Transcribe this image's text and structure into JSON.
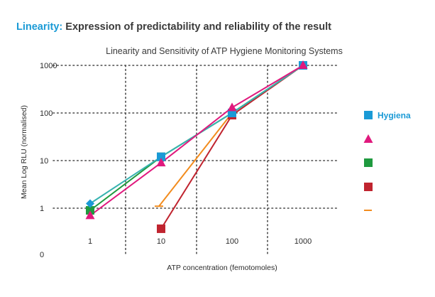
{
  "heading": {
    "highlight": "Linearity:",
    "text": "Expression of predictability and reliability of the result"
  },
  "colors": {
    "blue": "#1a9ad6",
    "magenta": "#e0197d",
    "green": "#1f9a3f",
    "orange": "#f28c1e",
    "red": "#c0242f",
    "teal": "#37b3b0"
  },
  "chart_data": {
    "type": "line",
    "title": "Linearity and Sensitivity of ATP Hygiene Monitoring Systems",
    "xlabel": "ATP concentration (femotomoles)",
    "ylabel": "Mean Log RLU (normalised)",
    "x_scale": "log",
    "y_scale": "log",
    "x_ticks": [
      "1",
      "10",
      "100",
      "1000"
    ],
    "y_ticks": [
      "0",
      "1",
      "10",
      "100",
      "1000"
    ],
    "grid": "dotted",
    "legend_position": "right",
    "series": [
      {
        "name": "Hygiena",
        "color": "#1a9ad6",
        "marker": "square",
        "line_color": "#37b3b0",
        "x": [
          1,
          10,
          100,
          1000
        ],
        "y": [
          1.25,
          12,
          100,
          1000
        ]
      },
      {
        "name": "",
        "color": "#e0197d",
        "marker": "triangle",
        "x": [
          1,
          10,
          100,
          1000
        ],
        "y": [
          0.7,
          9,
          130,
          1000
        ]
      },
      {
        "name": "",
        "color": "#1f9a3f",
        "marker": "square",
        "x": [
          1,
          10,
          100,
          1000
        ],
        "y": [
          0.9,
          12,
          100,
          1000
        ]
      },
      {
        "name": "",
        "color": "#c0242f",
        "marker": "square",
        "x": [
          10,
          100,
          1000
        ],
        "y": [
          0.37,
          90,
          1000
        ]
      },
      {
        "name": "",
        "color": "#f28c1e",
        "marker": "dash",
        "x": [
          10,
          100,
          1000
        ],
        "y": [
          1.1,
          100,
          1000
        ]
      }
    ]
  }
}
